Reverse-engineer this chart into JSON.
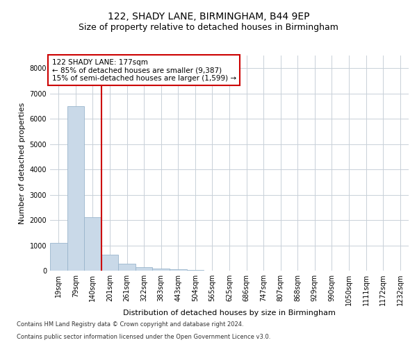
{
  "title": "122, SHADY LANE, BIRMINGHAM, B44 9EP",
  "subtitle": "Size of property relative to detached houses in Birmingham",
  "xlabel": "Distribution of detached houses by size in Birmingham",
  "ylabel": "Number of detached properties",
  "footnote1": "Contains HM Land Registry data © Crown copyright and database right 2024.",
  "footnote2": "Contains public sector information licensed under the Open Government Licence v3.0.",
  "annotation_title": "122 SHADY LANE: 177sqm",
  "annotation_line1": "← 85% of detached houses are smaller (9,387)",
  "annotation_line2": "15% of semi-detached houses are larger (1,599) →",
  "bar_labels": [
    "19sqm",
    "79sqm",
    "140sqm",
    "201sqm",
    "261sqm",
    "322sqm",
    "383sqm",
    "443sqm",
    "504sqm",
    "565sqm",
    "625sqm",
    "686sqm",
    "747sqm",
    "807sqm",
    "868sqm",
    "929sqm",
    "990sqm",
    "1050sqm",
    "1111sqm",
    "1172sqm",
    "1232sqm"
  ],
  "bar_values": [
    1100,
    6500,
    2100,
    620,
    280,
    130,
    70,
    50,
    20,
    5,
    0,
    0,
    0,
    0,
    0,
    0,
    0,
    0,
    0,
    0,
    0
  ],
  "bar_color": "#c9d9e8",
  "bar_edge_color": "#9ab5cc",
  "vline_x": 2.5,
  "vline_color": "#cc0000",
  "ylim": [
    0,
    8500
  ],
  "yticks": [
    0,
    1000,
    2000,
    3000,
    4000,
    5000,
    6000,
    7000,
    8000
  ],
  "bg_color": "#ffffff",
  "grid_color": "#c8d0d8",
  "title_fontsize": 10,
  "subtitle_fontsize": 9,
  "axis_label_fontsize": 8,
  "tick_fontsize": 7,
  "annotation_box_color": "#cc0000",
  "annotation_fontsize": 7.5
}
